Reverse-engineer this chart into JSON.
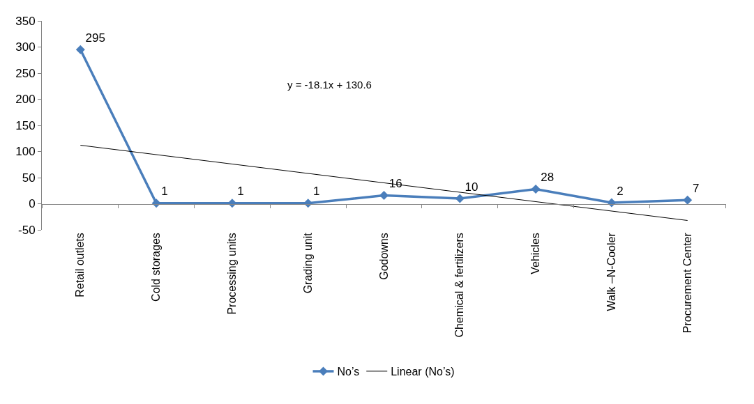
{
  "chart_data": {
    "type": "line",
    "categories": [
      "Retail outlets",
      "Cold storages",
      "Processing units",
      "Grading unit",
      "Godowns",
      "Chemical & fertilizers",
      "Vehicles",
      "Walk –N-Cooler",
      "Procurement Center"
    ],
    "series": [
      {
        "name": "No’s",
        "color": "#4a7ebb",
        "values": [
          295,
          1,
          1,
          1,
          16,
          10,
          28,
          2,
          7
        ],
        "marker": "diamond",
        "data_labels": true
      },
      {
        "name": "Linear (No’s)",
        "color": "#000000",
        "type": "line",
        "x": [
          "Retail outlets",
          "Procurement Center"
        ],
        "values": [
          112,
          -32
        ],
        "marker": "none"
      }
    ],
    "ylim": [
      -50,
      350
    ],
    "yticks": [
      -50,
      0,
      50,
      100,
      150,
      200,
      250,
      300,
      350
    ],
    "annotations": [
      "y = -18.1x + 130.6"
    ],
    "legend": "bottom"
  }
}
